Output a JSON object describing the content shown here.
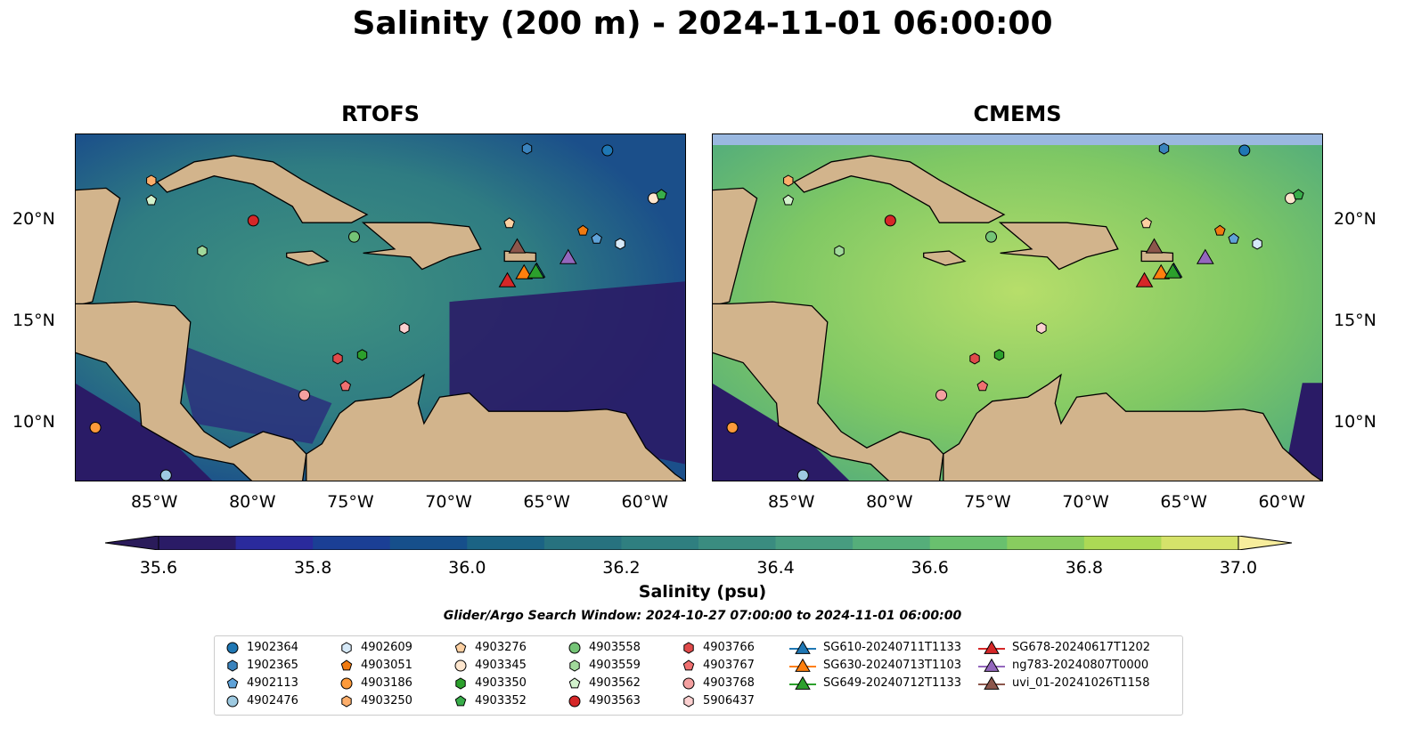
{
  "title": "Salinity (200 m) - 2024-11-01 06:00:00",
  "panels": [
    {
      "title": "RTOFS"
    },
    {
      "title": "CMEMS"
    }
  ],
  "lon_ticks": [
    "85°W",
    "80°W",
    "75°W",
    "70°W",
    "65°W",
    "60°W"
  ],
  "lat_ticks": [
    "20°N",
    "15°N",
    "10°N"
  ],
  "colorbar": {
    "label": "Salinity (psu)",
    "ticks": [
      "35.6",
      "35.8",
      "36.0",
      "36.2",
      "36.4",
      "36.6",
      "36.8",
      "37.0"
    ],
    "colors": [
      "#2a1b66",
      "#2a2a9c",
      "#1b3f95",
      "#164f8b",
      "#1b6384",
      "#27727f",
      "#2f7f80",
      "#3a8c80",
      "#479c80",
      "#55ae7a",
      "#69c06e",
      "#88cc5f",
      "#acd955",
      "#d5e26a"
    ],
    "under": "#2a1b5a",
    "over": "#f7ed9c"
  },
  "search_window": "Glider/Argo Search Window: 2024-10-27 07:00:00 to 2024-11-01 06:00:00",
  "colors": {
    "land": "#d2b48c",
    "shelf": "#9ab8e0"
  },
  "argo": [
    {
      "id": "1902364",
      "shape": "circle",
      "color": "#1f77b4",
      "lon": -61.95,
      "lat": 23.46
    },
    {
      "id": "1902365",
      "shape": "hexagon",
      "color": "#3a83bd",
      "lon": -66.05,
      "lat": 23.55
    },
    {
      "id": "4902113",
      "shape": "pentagon",
      "color": "#5fa2d8",
      "lon": -62.5,
      "lat": 19.1
    },
    {
      "id": "4902476",
      "shape": "circle",
      "color": "#9ecae1",
      "lon": -84.45,
      "lat": 7.45
    },
    {
      "id": "4902609",
      "shape": "hexagon",
      "color": "#d6e9f8",
      "lon": -61.3,
      "lat": 18.86
    },
    {
      "id": "4903051",
      "shape": "pentagon",
      "color": "#f07a10",
      "lon": -63.2,
      "lat": 19.5
    },
    {
      "id": "4903186",
      "shape": "circle",
      "color": "#fd9a3a",
      "lon": -88.05,
      "lat": 9.8
    },
    {
      "id": "4903250",
      "shape": "hexagon",
      "color": "#fdae6b",
      "lon": -85.2,
      "lat": 21.97
    },
    {
      "id": "4903276",
      "shape": "pentagon",
      "color": "#fdd0a2",
      "lon": -66.95,
      "lat": 19.87
    },
    {
      "id": "4903345",
      "shape": "circle",
      "color": "#fee6ce",
      "lon": -59.6,
      "lat": 21.1
    },
    {
      "id": "4903350",
      "shape": "hexagon",
      "color": "#2ca02c",
      "lon": -74.45,
      "lat": 13.38
    },
    {
      "id": "4903352",
      "shape": "pentagon",
      "color": "#38ad4a",
      "lon": -59.2,
      "lat": 21.27
    },
    {
      "id": "4903558",
      "shape": "circle",
      "color": "#74c476",
      "lon": -74.86,
      "lat": 19.2
    },
    {
      "id": "4903559",
      "shape": "hexagon",
      "color": "#a1d99b",
      "lon": -82.6,
      "lat": 18.5
    },
    {
      "id": "4903562",
      "shape": "pentagon",
      "color": "#d2f2cc",
      "lon": -85.2,
      "lat": 21.0
    },
    {
      "id": "4903563",
      "shape": "circle",
      "color": "#d62728",
      "lon": -80.0,
      "lat": 20.0
    },
    {
      "id": "4903766",
      "shape": "hexagon",
      "color": "#e04a4a",
      "lon": -75.7,
      "lat": 13.2
    },
    {
      "id": "4903767",
      "shape": "pentagon",
      "color": "#f07070",
      "lon": -75.3,
      "lat": 11.84
    },
    {
      "id": "4903768",
      "shape": "circle",
      "color": "#f4a0a0",
      "lon": -77.4,
      "lat": 11.4
    },
    {
      "id": "5906437",
      "shape": "hexagon",
      "color": "#fcd0d0",
      "lon": -72.3,
      "lat": 14.7
    }
  ],
  "gliders": [
    {
      "id": "SG610-20240711T1133",
      "color": "#1f77b4",
      "lon": -65.55,
      "lat": 17.54
    },
    {
      "id": "SG630-20240713T1103",
      "color": "#ff7f0e",
      "lon": -66.2,
      "lat": 17.45
    },
    {
      "id": "SG649-20240712T1133",
      "color": "#2ca02c",
      "lon": -65.6,
      "lat": 17.5
    },
    {
      "id": "SG678-20240617T1202",
      "color": "#d62728",
      "lon": -67.05,
      "lat": 17.06
    },
    {
      "id": "ng783-20240807T0000",
      "color": "#9467bd",
      "lon": -63.95,
      "lat": 18.2
    },
    {
      "id": "uvi_01-20241026T1158",
      "color": "#8c564b",
      "lon": -66.55,
      "lat": 18.73
    }
  ]
}
